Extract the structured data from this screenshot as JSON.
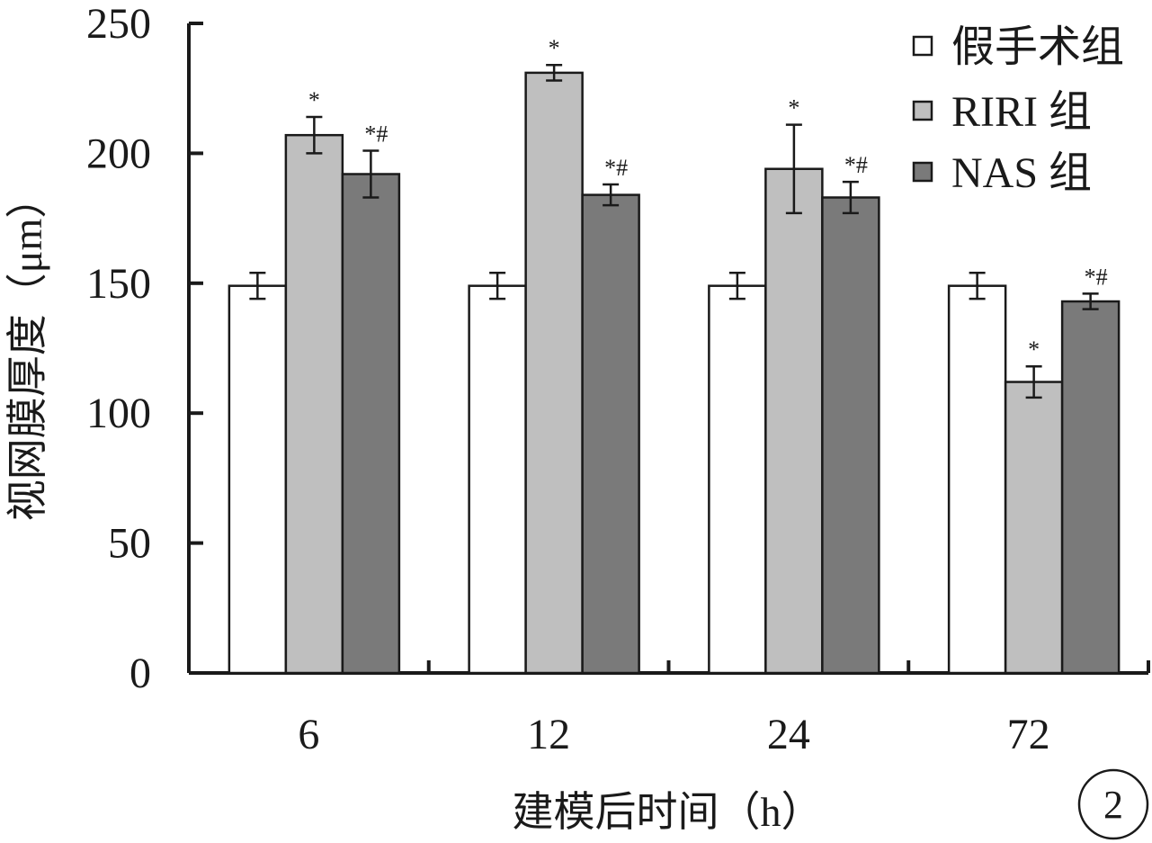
{
  "chart_data": {
    "type": "bar",
    "xlabel": "建模后时间（h）",
    "ylabel": "视网膜厚度（μm）",
    "categories": [
      "6",
      "12",
      "24",
      "72"
    ],
    "ylim": [
      0,
      250
    ],
    "yticks": [
      0,
      50,
      100,
      150,
      200,
      250
    ],
    "series": [
      {
        "name": "假手术组",
        "color": "#ffffff",
        "values": [
          149,
          149,
          149,
          149
        ],
        "errors": [
          5,
          5,
          5,
          5
        ],
        "annotations": [
          "",
          "",
          "",
          ""
        ]
      },
      {
        "name": "RIRI 组",
        "color": "#bfbfbf",
        "values": [
          207,
          231,
          194,
          112
        ],
        "errors": [
          7,
          3,
          17,
          6
        ],
        "annotations": [
          "*",
          "*",
          "*",
          "*"
        ]
      },
      {
        "name": "NAS 组",
        "color": "#7a7a7a",
        "values": [
          192,
          184,
          183,
          143
        ],
        "errors": [
          9,
          4,
          6,
          3
        ],
        "annotations": [
          "*#",
          "*#",
          "*#",
          "*#"
        ]
      }
    ],
    "legend_position": "top-right",
    "grid": false,
    "panel_label": "2"
  }
}
